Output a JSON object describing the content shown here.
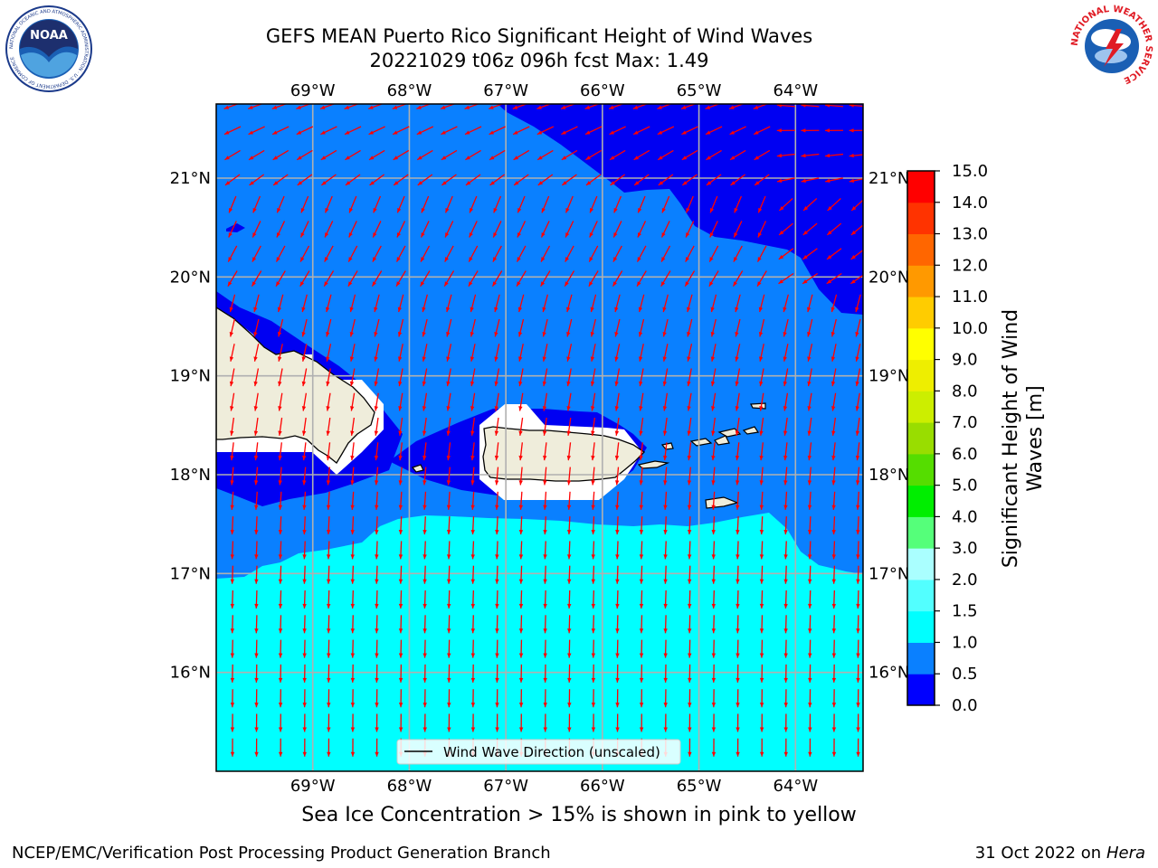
{
  "header": {
    "title_line1": "GEFS MEAN Puerto Rico Significant Height of Wind Waves",
    "title_line2": "20221029 t06z 096h fcst   Max: 1.49",
    "noaa_logo_text": "NOAA",
    "noaa_ring_text": "NATIONAL OCEANIC AND ATMOSPHERIC ADMINISTRATION · U.S. DEPARTMENT OF COMMERCE",
    "nws_ring_text": "NATIONAL WEATHER SERVICE"
  },
  "map": {
    "lon_labels": [
      "69°W",
      "68°W",
      "67°W",
      "66°W",
      "65°W",
      "64°W"
    ],
    "lat_labels": [
      "21°N",
      "20°N",
      "19°N",
      "18°N",
      "17°N",
      "16°N"
    ],
    "legend_label": "Wind Wave Direction (unscaled)",
    "colors": {
      "band_0_0_5": "#0000f2",
      "band_0_5_1_0": "#0a80ff",
      "band_1_0_1_5": "#00ffff",
      "land": "#efeddb",
      "arrow": "#ff0000"
    }
  },
  "colorbar": {
    "label": "Significant Height of Wind Waves [m]",
    "ticks": [
      "0.0",
      "0.5",
      "1.0",
      "1.5",
      "2.0",
      "3.0",
      "4.0",
      "5.0",
      "6.0",
      "7.0",
      "8.0",
      "9.0",
      "10.0",
      "11.0",
      "12.0",
      "13.0",
      "14.0",
      "15.0"
    ],
    "colors": [
      "#0000ff",
      "#0a80ff",
      "#00ffff",
      "#52ffff",
      "#aaffff",
      "#55ff7a",
      "#00ee00",
      "#55dd00",
      "#99dd00",
      "#ccee00",
      "#eeee00",
      "#ffff00",
      "#ffcc00",
      "#ff9900",
      "#ff6600",
      "#ff3300",
      "#ff0000"
    ]
  },
  "footer": {
    "caption": "Sea Ice Concentration > 15% is shown in pink to yellow",
    "left": "NCEP/EMC/Verification Post Processing Product Generation Branch",
    "right_date": "31 Oct 2022 on ",
    "right_host": "Hera"
  }
}
